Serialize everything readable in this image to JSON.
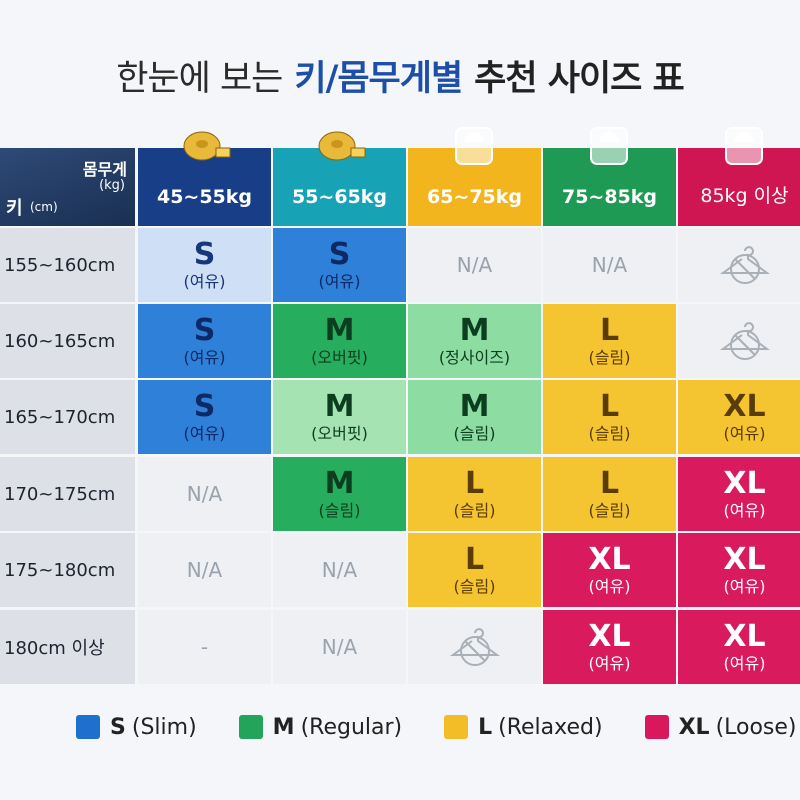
{
  "title": {
    "parts": [
      {
        "text": "한눈에 보는",
        "color": "#2b2b2b",
        "weight": 400
      },
      {
        "text": "키/몸무게별",
        "color": "#1d4fa8",
        "weight": 700
      },
      {
        "text": "추천 사이즈 표",
        "color": "#222222",
        "weight": 700
      }
    ]
  },
  "table": {
    "corner": {
      "weight": "몸무게",
      "weight_unit": "(kg)",
      "height": "키",
      "height_unit": "(cm)"
    },
    "columns": [
      {
        "label": "45~55kg",
        "color": "#173e86"
      },
      {
        "label": "55~65kg",
        "color": "#17a3b5"
      },
      {
        "label": "65~75kg",
        "color": "#f2b51d"
      },
      {
        "label": "75~85kg",
        "color": "#1f9a55"
      },
      {
        "label": "85kg 이상",
        "color": "#cf1552"
      }
    ],
    "rows": [
      {
        "label": "155~160cm",
        "cells": [
          {
            "size": "S",
            "note": "(여유)",
            "color": "#cfe0f6",
            "ink": "#17377d"
          },
          {
            "size": "S",
            "note": "(여유)",
            "color": "#2f80d8",
            "ink": "#0d2a66"
          },
          {
            "text": "N/A"
          },
          {
            "text": "N/A"
          },
          null
        ]
      },
      {
        "label": "160~165cm",
        "cells": [
          {
            "size": "S",
            "note": "(여유)",
            "color": "#2f80d8",
            "ink": "#0d2a66"
          },
          {
            "size": "M",
            "note": "(오버핏)",
            "color": "#27ad5e",
            "ink": "#0c3d1f"
          },
          {
            "size": "M",
            "note": "(정사이즈)",
            "color": "#8ddca2",
            "ink": "#0c3d1f"
          },
          {
            "size": "L",
            "note": "(슬림)",
            "color": "#f5c531",
            "ink": "#5a3c05"
          },
          null
        ]
      },
      {
        "label": "165~170cm",
        "cells": [
          {
            "size": "S",
            "note": "(여유)",
            "color": "#2f80d8",
            "ink": "#0d2a66"
          },
          {
            "size": "M",
            "note": "(오버핏)",
            "color": "#a5e4b2",
            "ink": "#0c3d1f"
          },
          {
            "size": "M",
            "note": "(슬림)",
            "color": "#8ddca2",
            "ink": "#0c3d1f"
          },
          {
            "size": "L",
            "note": "(슬림)",
            "color": "#f5c531",
            "ink": "#5a3c05"
          },
          {
            "size": "XL",
            "note": "(여유)",
            "color": "#f5c531",
            "ink": "#5a3c05"
          }
        ]
      },
      {
        "label": "170~175cm",
        "cells": [
          {
            "text": "N/A"
          },
          {
            "size": "M",
            "note": "(슬림)",
            "color": "#27ad5e",
            "ink": "#0c3d1f"
          },
          {
            "size": "L",
            "note": "(슬림)",
            "color": "#f5c531",
            "ink": "#5a3c05"
          },
          {
            "size": "L",
            "note": "(슬림)",
            "color": "#f5c531",
            "ink": "#5a3c05"
          },
          {
            "size": "XL",
            "note": "(여유)",
            "color": "#d91a5c",
            "ink": "#ffffff"
          }
        ]
      },
      {
        "label": "175~180cm",
        "cells": [
          {
            "text": "N/A"
          },
          {
            "text": "N/A"
          },
          {
            "size": "L",
            "note": "(슬림)",
            "color": "#f5c531",
            "ink": "#5a3c05"
          },
          {
            "size": "XL",
            "note": "(여유)",
            "color": "#d91a5c",
            "ink": "#ffffff"
          },
          {
            "size": "XL",
            "note": "(여유)",
            "color": "#d91a5c",
            "ink": "#ffffff"
          }
        ]
      },
      {
        "label": "180cm 이상",
        "cells": [
          {
            "text": "-"
          },
          {
            "text": "N/A"
          },
          null,
          {
            "size": "XL",
            "note": "(여유)",
            "color": "#d91a5c",
            "ink": "#ffffff"
          },
          {
            "size": "XL",
            "note": "(여유)",
            "color": "#d91a5c",
            "ink": "#ffffff"
          }
        ]
      }
    ]
  },
  "legend": [
    {
      "size": "S",
      "name": "(Slim)",
      "color": "#1f6fcf"
    },
    {
      "size": "M",
      "name": "(Regular)",
      "color": "#22a55a"
    },
    {
      "size": "L",
      "name": "(Relaxed)",
      "color": "#f3bd28"
    },
    {
      "size": "XL",
      "name": "(Loose)",
      "color": "#d8185a"
    }
  ]
}
